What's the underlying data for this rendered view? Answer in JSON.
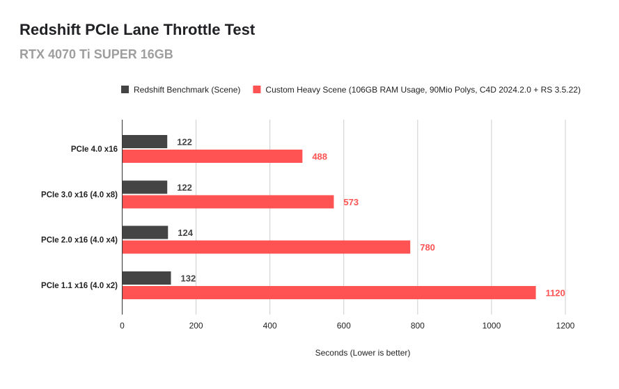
{
  "chart_data": {
    "type": "bar",
    "orientation": "horizontal",
    "title": "Redshift PCIe Lane Throttle Test",
    "subtitle": "RTX 4070 Ti SUPER 16GB",
    "xlabel": "Seconds (Lower is better)",
    "ylabel": "",
    "categories": [
      "PCIe 4.0 x16",
      "PCIe 3.0 x16 (4.0 x8)",
      "PCIe 2.0 x16 (4.0 x4)",
      "PCIe 1.1 x16 (4.0 x2)"
    ],
    "series": [
      {
        "name": "Redshift Benchmark (Scene)",
        "color": "#444444",
        "values": [
          122,
          122,
          124,
          132
        ]
      },
      {
        "name": "Custom Heavy Scene (106GB RAM Usage, 90Mio Polys, C4D 2024.2.0 + RS 3.5.22)",
        "color": "#ff5252",
        "values": [
          488,
          573,
          780,
          1120
        ]
      }
    ],
    "xlim": [
      0,
      1200
    ],
    "xticks": [
      0,
      200,
      400,
      600,
      800,
      1000,
      1200
    ],
    "grid": true,
    "legend_position": "top",
    "data_labels": true
  }
}
